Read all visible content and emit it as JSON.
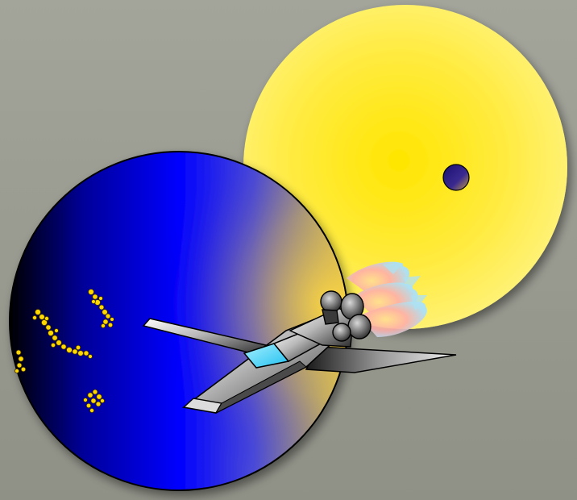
{
  "scene": {
    "background_color": "#9a9c92",
    "objects": [
      {
        "name": "sun",
        "color": "#ffe600"
      },
      {
        "name": "small-moon-on-sun",
        "color": "#2a1a80"
      },
      {
        "name": "blue-planet",
        "color": "#0000ff"
      },
      {
        "name": "yellow-city-lights",
        "color": "#ffd800"
      },
      {
        "name": "spaceship",
        "color": "#cfcfcf"
      },
      {
        "name": "spaceship-canopy",
        "color": "#55d8ff"
      },
      {
        "name": "engine-exhaust-flames",
        "color": "#ffb0a0"
      }
    ]
  }
}
